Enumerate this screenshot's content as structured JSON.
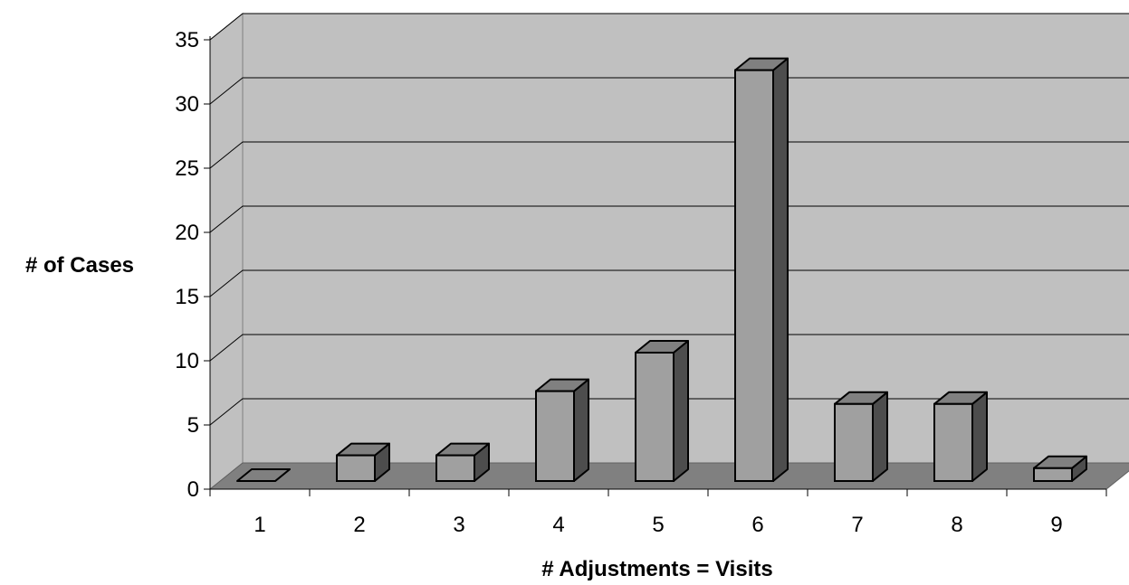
{
  "chart_data": {
    "type": "bar",
    "title": "",
    "xlabel": "# Adjustments = Visits",
    "ylabel": "# of Cases",
    "categories": [
      "1",
      "2",
      "3",
      "4",
      "5",
      "6",
      "7",
      "8",
      "9"
    ],
    "values": [
      0,
      2,
      2,
      7,
      10,
      32,
      6,
      6,
      1
    ],
    "ylim": [
      0,
      35
    ],
    "yticks": [
      0,
      5,
      10,
      15,
      20,
      25,
      30,
      35
    ],
    "grid": true,
    "legend": "none",
    "style": "3d-column",
    "colors": {
      "wall": "#c0c0c0",
      "floor": "#808080",
      "bar_front": "#a0a0a0",
      "bar_top": "#808080",
      "bar_side": "#4d4d4d"
    }
  }
}
